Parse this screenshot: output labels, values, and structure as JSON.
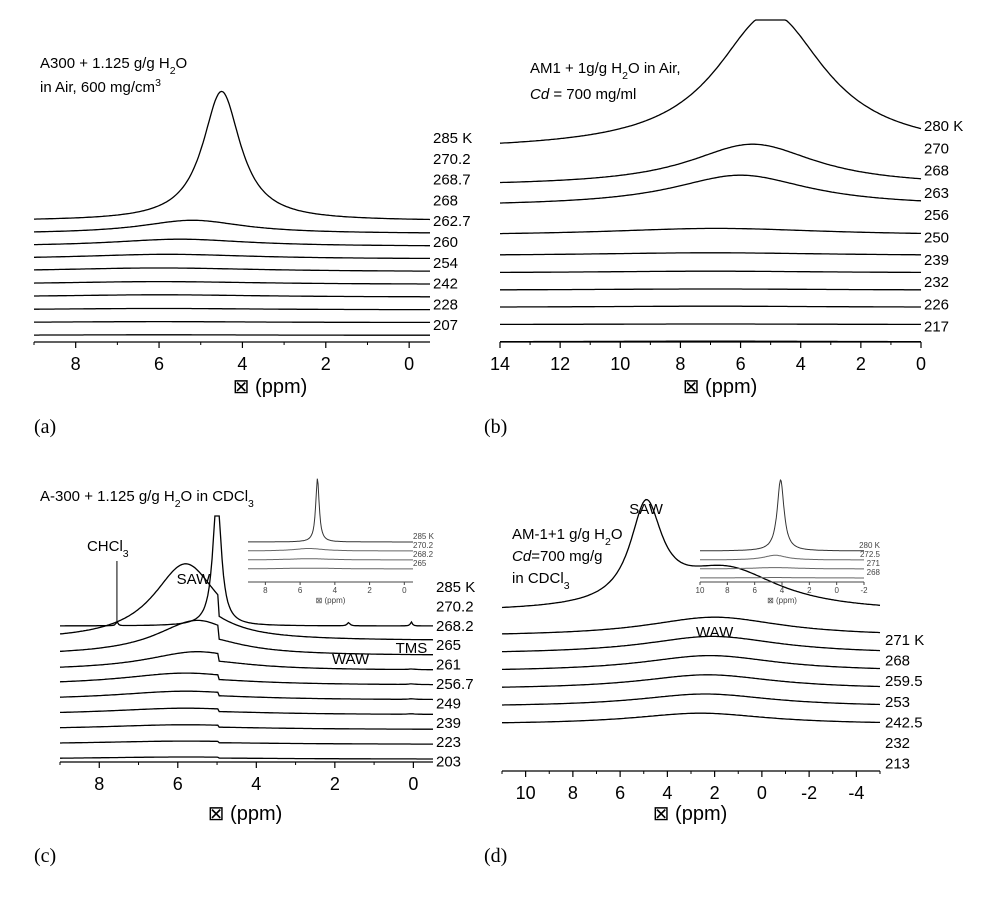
{
  "chart_data": [
    {
      "id": "a",
      "type": "line",
      "panel_label": "(a)",
      "title_lines": [
        [
          "A300 + 1.125 g/g H",
          [
            "2",
            "sub"
          ],
          "O"
        ],
        [
          "in Air, 600 mg/cm",
          [
            "3",
            "sup"
          ]
        ]
      ],
      "xlabel": "⊠ (ppm)",
      "xlim": [
        9,
        -0.5
      ],
      "xticks": [
        8,
        6,
        4,
        2,
        0
      ],
      "series": [
        {
          "label": "285 K",
          "peaks": [
            [
              4.5,
              2.7,
              0.55
            ]
          ],
          "base": 0
        },
        {
          "label": "270.2",
          "peaks": [
            [
              5.2,
              0.28,
              1.5
            ]
          ],
          "base": 0
        },
        {
          "label": "268.7",
          "peaks": [
            [
              5.5,
              0.15,
              2.0
            ]
          ],
          "base": 0
        },
        {
          "label": "268",
          "peaks": [
            [
              5.8,
              0.1,
              2.5
            ]
          ],
          "base": 0
        },
        {
          "label": "262.7",
          "peaks": [
            [
              6.0,
              0.08,
              3.0
            ]
          ],
          "base": 0
        },
        {
          "label": "260",
          "peaks": [
            [
              6.0,
              0.06,
              3.0
            ]
          ],
          "base": 0
        },
        {
          "label": "254",
          "peaks": [
            [
              6.0,
              0.05,
              3.0
            ]
          ],
          "base": 0
        },
        {
          "label": "242",
          "peaks": [
            [
              6.0,
              0.03,
              3.0
            ]
          ],
          "base": 0
        },
        {
          "label": "228",
          "peaks": [
            [
              6.0,
              0.02,
              3.0
            ]
          ],
          "base": 0
        },
        {
          "label": "207",
          "peaks": [
            [
              6.0,
              0.01,
              3.0
            ]
          ],
          "base": 0
        }
      ]
    },
    {
      "id": "b",
      "type": "line",
      "panel_label": "(b)",
      "title_lines": [
        [
          "AM1 + 1g/g H",
          [
            "2",
            "sub"
          ],
          "O in Air,"
        ],
        [
          [
            "Cd",
            "i"
          ],
          " = 700 mg/ml"
        ]
      ],
      "xlabel": "⊠ (ppm)",
      "xlim": [
        14,
        0
      ],
      "xticks": [
        14,
        12,
        10,
        8,
        6,
        4,
        2,
        0
      ],
      "series": [
        {
          "label": "280 K",
          "peaks": [
            [
              5.0,
              2.3,
              2.2
            ]
          ],
          "base": 0.6
        },
        {
          "label": "270",
          "peaks": [
            [
              5.6,
              0.7,
              2.6
            ]
          ],
          "base": 0.3
        },
        {
          "label": "268",
          "peaks": [
            [
              6.0,
              0.52,
              2.8
            ]
          ],
          "base": 0.25
        },
        {
          "label": "263",
          "peaks": [
            [
              6.8,
              0.12,
              4.5
            ]
          ],
          "base": 0.05
        },
        {
          "label": "256",
          "peaks": [
            [
              7.0,
              0.05,
              5.0
            ]
          ],
          "base": 0
        },
        {
          "label": "250",
          "peaks": [
            [
              7.0,
              0.03,
              5.0
            ]
          ],
          "base": 0
        },
        {
          "label": "239",
          "peaks": [
            [
              7.0,
              0.02,
              5.0
            ]
          ],
          "base": 0
        },
        {
          "label": "232",
          "peaks": [
            [
              7.0,
              0.02,
              5.0
            ]
          ],
          "base": 0
        },
        {
          "label": "226",
          "peaks": [
            [
              7.0,
              0.01,
              5.0
            ]
          ],
          "base": 0
        },
        {
          "label": "217",
          "peaks": [
            [
              7.0,
              0.01,
              5.0
            ]
          ],
          "base": 0
        }
      ]
    },
    {
      "id": "c",
      "type": "line",
      "panel_label": "(c)",
      "title_lines": [
        [
          "A-300 + 1.125 g/g H",
          [
            "2",
            "sub"
          ],
          "O in CDCl",
          [
            "3",
            "sub"
          ]
        ]
      ],
      "xlabel": "⊠ (ppm)",
      "xlim": [
        9,
        -0.5
      ],
      "xticks": [
        8,
        6,
        4,
        2,
        0
      ],
      "annotations": [
        {
          "text": "SAW",
          "x": 5.6,
          "y": 3.3
        },
        {
          "text": "WAW",
          "x": 1.6,
          "y": 0.35
        },
        {
          "text": "TMS",
          "x": 0.05,
          "y": 0.35
        },
        {
          "text": "CHCl",
          "sub": "3",
          "x": 7.6,
          "y": 3.8
        }
      ],
      "series": [
        {
          "label": "285 K",
          "peaks": [
            [
              5.0,
              6.0,
              0.13
            ],
            [
              7.55,
              0.18,
              0.03
            ],
            [
              1.65,
              0.15,
              0.04
            ],
            [
              0.05,
              0.18,
              0.03
            ]
          ],
          "base": 0,
          "clip": 5.0
        },
        {
          "label": "270.2",
          "peaks": [
            [
              5.8,
              3.5,
              1.0
            ]
          ],
          "base": 0,
          "edge": 4.95
        },
        {
          "label": "268.2",
          "peaks": [
            [
              5.5,
              1.6,
              1.3
            ]
          ],
          "base": 0,
          "edge": 4.95
        },
        {
          "label": "265",
          "peaks": [
            [
              5.5,
              0.85,
              1.6
            ],
            [
              0.05,
              0.05,
              0.1
            ]
          ],
          "base": 0,
          "edge": 4.95
        },
        {
          "label": "261",
          "peaks": [
            [
              5.8,
              0.55,
              2.0
            ],
            [
              0.05,
              0.05,
              0.1
            ]
          ],
          "base": 0,
          "edge": 4.95
        },
        {
          "label": "256.7",
          "peaks": [
            [
              5.8,
              0.4,
              2.2
            ],
            [
              0.05,
              0.05,
              0.1
            ]
          ],
          "base": 0,
          "edge": 4.95
        },
        {
          "label": "249",
          "peaks": [
            [
              5.8,
              0.3,
              2.4
            ],
            [
              0.05,
              0.04,
              0.1
            ]
          ],
          "base": 0,
          "edge": 4.95
        },
        {
          "label": "239",
          "peaks": [
            [
              5.8,
              0.22,
              2.6
            ]
          ],
          "base": 0,
          "edge": 4.95
        },
        {
          "label": "223",
          "peaks": [
            [
              5.8,
              0.15,
              2.8
            ]
          ],
          "base": 0,
          "edge": 4.95
        },
        {
          "label": "203",
          "peaks": [
            [
              5.8,
              0.1,
              3.0
            ]
          ],
          "base": 0,
          "edge": 4.95
        }
      ],
      "inset": {
        "xlim": [
          9,
          -0.5
        ],
        "xticks": [
          8,
          6,
          4,
          2,
          0
        ],
        "xlabel": "⊠ (ppm)",
        "series": [
          {
            "label": "285 K",
            "peaks": [
              [
                5.0,
                7.5,
                0.12
              ]
            ],
            "base": 0
          },
          {
            "label": "270.2",
            "peaks": [
              [
                5.5,
                0.3,
                1.0
              ]
            ],
            "base": 0
          },
          {
            "label": "268.2",
            "peaks": [
              [
                5.5,
                0.15,
                1.5
              ]
            ],
            "base": 0
          },
          {
            "label": "265",
            "peaks": [
              [
                5.5,
                0.1,
                2.0
              ]
            ],
            "base": 0
          }
        ]
      }
    },
    {
      "id": "d",
      "type": "line",
      "panel_label": "(d)",
      "title_lines": [
        [
          "AM-1+1 g/g H",
          [
            "2",
            "sub"
          ],
          "O"
        ],
        [
          [
            "Cd",
            "i"
          ],
          "=700 mg/g"
        ],
        [
          "in CDCl",
          [
            "3",
            "sub"
          ]
        ]
      ],
      "xlabel": "⊠ (ppm)",
      "xlim": [
        11,
        -5
      ],
      "xticks": [
        10,
        8,
        6,
        4,
        2,
        0,
        -2,
        -4
      ],
      "annotations": [
        {
          "text": "SAW",
          "x": 4.9,
          "y": 4.0
        },
        {
          "text": "WAW",
          "x": 2.0,
          "y": 0.55
        }
      ],
      "series": [
        {
          "label": "271 K",
          "peaks": [
            [
              4.9,
              3.0,
              0.8
            ],
            [
              1.5,
              1.3,
              2.8
            ]
          ],
          "base": 0.3
        },
        {
          "label": "268",
          "peaks": [
            [
              2.0,
              0.6,
              3.5
            ]
          ],
          "base": 0.1
        },
        {
          "label": "259.5",
          "peaks": [
            [
              2.1,
              0.55,
              3.5
            ]
          ],
          "base": 0.1
        },
        {
          "label": "253",
          "peaks": [
            [
              2.2,
              0.5,
              3.5
            ]
          ],
          "base": 0.1
        },
        {
          "label": "242.5",
          "peaks": [
            [
              2.3,
              0.45,
              3.5
            ]
          ],
          "base": 0.1
        },
        {
          "label": "232",
          "peaks": [
            [
              2.4,
              0.4,
              3.5
            ]
          ],
          "base": 0.1
        },
        {
          "label": "213",
          "peaks": [
            [
              2.6,
              0.35,
              3.5
            ]
          ],
          "base": 0.1
        }
      ],
      "inset": {
        "xlim": [
          10,
          -2
        ],
        "xticks": [
          10,
          8,
          6,
          4,
          2,
          0,
          -2
        ],
        "xlabel": "⊠ (ppm)",
        "series": [
          {
            "label": "280 K",
            "peaks": [
              [
                4.1,
                7.5,
                0.3
              ]
            ],
            "base": 0
          },
          {
            "label": "272.5",
            "peaks": [
              [
                4.5,
                0.5,
                1.0
              ]
            ],
            "base": 0
          },
          {
            "label": "271",
            "peaks": [
              [
                4.5,
                0.15,
                2.0
              ]
            ],
            "base": 0
          },
          {
            "label": "268",
            "peaks": [
              [
                4.5,
                0.05,
                2.0
              ]
            ],
            "base": 0
          }
        ]
      }
    }
  ]
}
